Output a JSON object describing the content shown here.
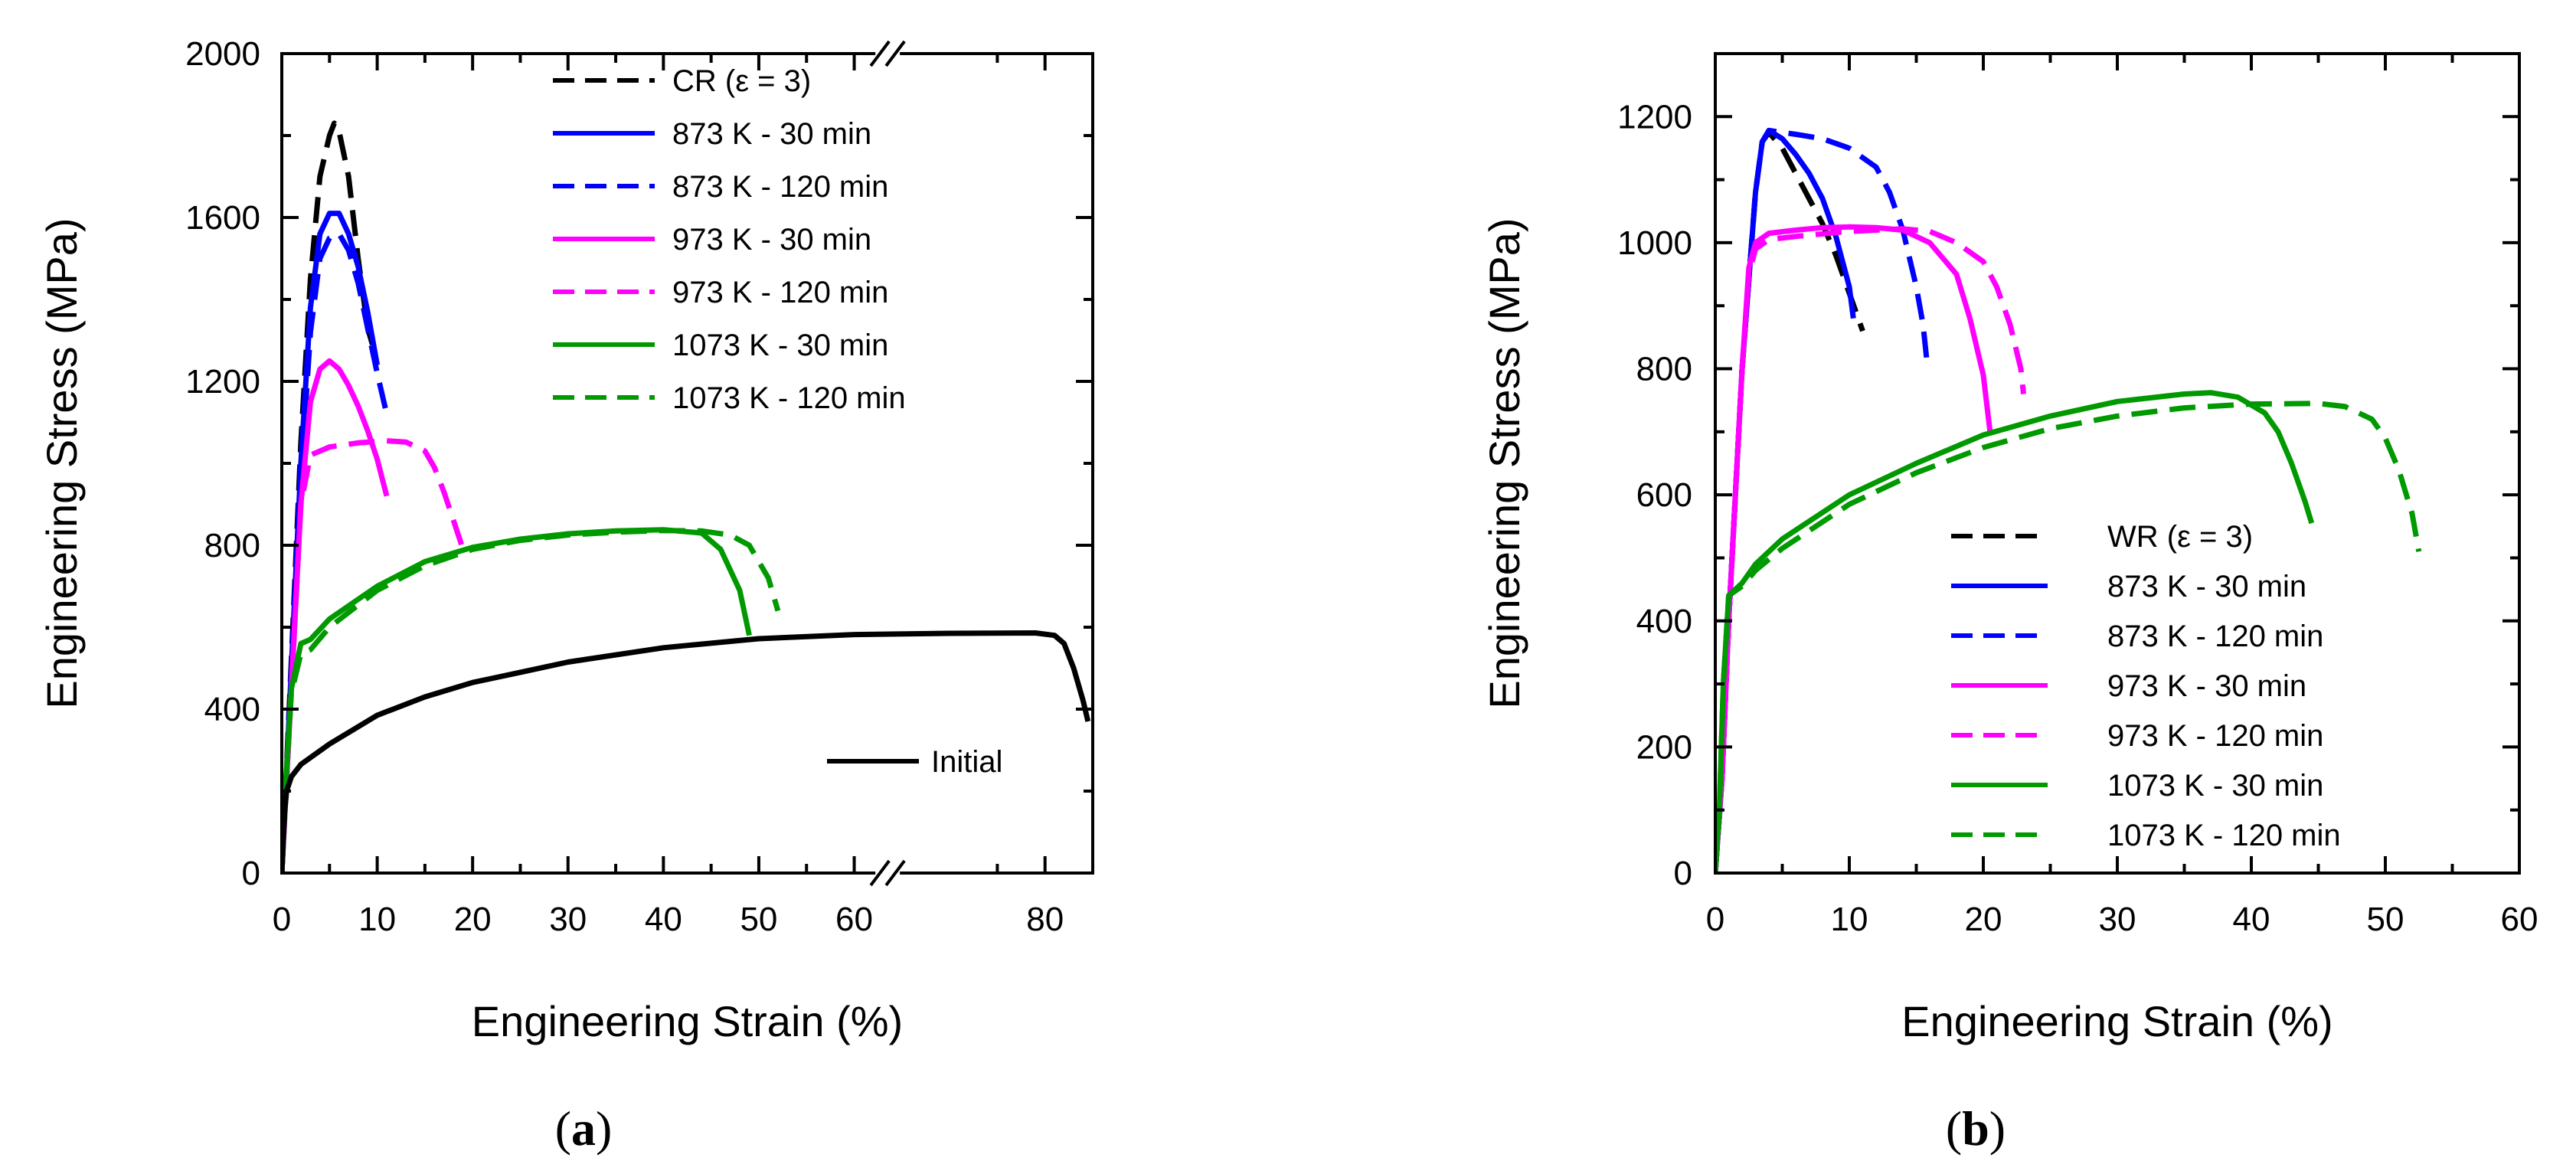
{
  "chart_data": [
    {
      "type": "line",
      "panel": "a",
      "panel_label": "a",
      "title": "",
      "xlabel": "Engineering Strain (%)",
      "ylabel": "Engineering Stress (MPa)",
      "xlim": [
        0,
        85
      ],
      "ylim": [
        0,
        2000
      ],
      "axis_break": [
        62,
        65
      ],
      "xticks": [
        0,
        10,
        20,
        30,
        40,
        50,
        60,
        80
      ],
      "xtick_labels": [
        "0",
        "10",
        "20",
        "30",
        "40",
        "50",
        "60",
        "80"
      ],
      "yticks": [
        0,
        400,
        800,
        1200,
        1600,
        2000
      ],
      "ytick_labels": [
        "0",
        "400",
        "800",
        "1200",
        "1600",
        "2000"
      ],
      "legend_position": "top-right",
      "series": [
        {
          "name": "CR (ε = 3)",
          "color": "#000000",
          "style": "dashed",
          "in_legend": true,
          "points": [
            [
              0,
              0
            ],
            [
              1,
              520
            ],
            [
              2,
              1050
            ],
            [
              3,
              1450
            ],
            [
              4,
              1700
            ],
            [
              5,
              1800
            ],
            [
              5.5,
              1830
            ],
            [
              6,
              1810
            ],
            [
              7,
              1700
            ],
            [
              8,
              1500
            ],
            [
              9,
              1330
            ],
            [
              9.5,
              1290
            ]
          ]
        },
        {
          "name": "873 K - 30 min",
          "color": "#0000ff",
          "style": "solid",
          "in_legend": true,
          "points": [
            [
              0,
              0
            ],
            [
              1,
              500
            ],
            [
              2,
              1000
            ],
            [
              3,
              1380
            ],
            [
              4,
              1560
            ],
            [
              5,
              1610
            ],
            [
              6,
              1610
            ],
            [
              7,
              1560
            ],
            [
              8,
              1480
            ],
            [
              9,
              1370
            ],
            [
              10,
              1240
            ]
          ]
        },
        {
          "name": "873 K - 120 min",
          "color": "#0000ff",
          "style": "dashed",
          "in_legend": true,
          "points": [
            [
              0,
              0
            ],
            [
              1,
              480
            ],
            [
              2,
              960
            ],
            [
              3,
              1320
            ],
            [
              4,
              1500
            ],
            [
              5,
              1550
            ],
            [
              6,
              1560
            ],
            [
              7,
              1520
            ],
            [
              8,
              1440
            ],
            [
              9,
              1330
            ],
            [
              10,
              1220
            ],
            [
              11,
              1120
            ]
          ]
        },
        {
          "name": "973 K - 30 min",
          "color": "#ff00ff",
          "style": "solid",
          "in_legend": true,
          "points": [
            [
              0,
              0
            ],
            [
              1,
              450
            ],
            [
              2,
              900
            ],
            [
              3,
              1150
            ],
            [
              4,
              1230
            ],
            [
              5,
              1250
            ],
            [
              6,
              1230
            ],
            [
              7,
              1190
            ],
            [
              8,
              1140
            ],
            [
              9,
              1080
            ],
            [
              10,
              1010
            ],
            [
              11,
              920
            ]
          ]
        },
        {
          "name": "973 K - 120 min",
          "color": "#ff00ff",
          "style": "dashed",
          "in_legend": true,
          "points": [
            [
              0,
              0
            ],
            [
              1,
              450
            ],
            [
              2,
              900
            ],
            [
              3,
              1020
            ],
            [
              5,
              1040
            ],
            [
              8,
              1050
            ],
            [
              11,
              1055
            ],
            [
              13,
              1052
            ],
            [
              15,
              1030
            ],
            [
              16,
              990
            ],
            [
              17,
              930
            ],
            [
              18,
              860
            ],
            [
              19,
              790
            ]
          ]
        },
        {
          "name": "1073 K - 30 min",
          "color": "#009900",
          "style": "solid",
          "in_legend": true,
          "points": [
            [
              0,
              0
            ],
            [
              0.5,
              250
            ],
            [
              1,
              450
            ],
            [
              2,
              560
            ],
            [
              3,
              570
            ],
            [
              5,
              620
            ],
            [
              10,
              700
            ],
            [
              15,
              760
            ],
            [
              20,
              795
            ],
            [
              25,
              815
            ],
            [
              30,
              828
            ],
            [
              35,
              835
            ],
            [
              40,
              838
            ],
            [
              44,
              830
            ],
            [
              46,
              790
            ],
            [
              48,
              690
            ],
            [
              49,
              580
            ]
          ]
        },
        {
          "name": "1073 K - 120 min",
          "color": "#009900",
          "style": "dashed",
          "in_legend": true,
          "points": [
            [
              0,
              0
            ],
            [
              0.5,
              250
            ],
            [
              1,
              440
            ],
            [
              2,
              535
            ],
            [
              3,
              545
            ],
            [
              5,
              600
            ],
            [
              10,
              690
            ],
            [
              15,
              750
            ],
            [
              20,
              790
            ],
            [
              25,
              812
            ],
            [
              30,
              825
            ],
            [
              35,
              832
            ],
            [
              40,
              836
            ],
            [
              44,
              835
            ],
            [
              47,
              825
            ],
            [
              49,
              800
            ],
            [
              51,
              720
            ],
            [
              52,
              640
            ]
          ]
        },
        {
          "name": "Initial",
          "color": "#000000",
          "style": "solid",
          "in_legend": false,
          "label_text": "Initial",
          "points": [
            [
              0,
              0
            ],
            [
              0.3,
              150
            ],
            [
              0.5,
              200
            ],
            [
              1,
              235
            ],
            [
              2,
              265
            ],
            [
              5,
              315
            ],
            [
              10,
              385
            ],
            [
              15,
              430
            ],
            [
              20,
              465
            ],
            [
              25,
              490
            ],
            [
              30,
              515
            ],
            [
              40,
              550
            ],
            [
              50,
              572
            ],
            [
              60,
              582
            ],
            [
              70,
              585
            ],
            [
              79,
              586
            ],
            [
              81,
              580
            ],
            [
              82,
              560
            ],
            [
              83,
              500
            ],
            [
              84,
              420
            ],
            [
              84.5,
              370
            ]
          ]
        }
      ]
    },
    {
      "type": "line",
      "panel": "b",
      "panel_label": "b",
      "title": "",
      "xlabel": "Engineering Strain (%)",
      "ylabel": "Engineering Stress (MPa)",
      "xlim": [
        0,
        60
      ],
      "ylim": [
        0,
        1300
      ],
      "xticks": [
        0,
        10,
        20,
        30,
        40,
        50,
        60
      ],
      "xtick_labels": [
        "0",
        "10",
        "20",
        "30",
        "40",
        "50",
        "60"
      ],
      "yticks": [
        0,
        200,
        400,
        600,
        800,
        1000,
        1200
      ],
      "ytick_labels": [
        "0",
        "200",
        "400",
        "600",
        "800",
        "1000",
        "1200"
      ],
      "legend_position": "lower-center-right",
      "series": [
        {
          "name": "WR (ε = 3)",
          "color": "#000000",
          "style": "dashed",
          "in_legend": true,
          "points": [
            [
              0,
              0
            ],
            [
              0.5,
              150
            ],
            [
              1,
              400
            ],
            [
              2,
              800
            ],
            [
              3,
              1080
            ],
            [
              3.5,
              1160
            ],
            [
              4,
              1175
            ],
            [
              5,
              1150
            ],
            [
              6,
              1110
            ],
            [
              7,
              1070
            ],
            [
              8,
              1030
            ],
            [
              9,
              980
            ],
            [
              10,
              920
            ],
            [
              11,
              860
            ]
          ]
        },
        {
          "name": "873 K - 30 min",
          "color": "#0000ff",
          "style": "solid",
          "in_legend": true,
          "points": [
            [
              0,
              0
            ],
            [
              0.5,
              150
            ],
            [
              1,
              400
            ],
            [
              2,
              800
            ],
            [
              3,
              1080
            ],
            [
              3.5,
              1160
            ],
            [
              4,
              1178
            ],
            [
              5,
              1165
            ],
            [
              6,
              1140
            ],
            [
              7,
              1110
            ],
            [
              8,
              1070
            ],
            [
              9,
              1010
            ],
            [
              10,
              930
            ],
            [
              10.3,
              880
            ]
          ]
        },
        {
          "name": "873 K - 120 min",
          "color": "#0000ff",
          "style": "dashed",
          "in_legend": true,
          "points": [
            [
              0,
              0
            ],
            [
              0.5,
              150
            ],
            [
              1,
              400
            ],
            [
              2,
              800
            ],
            [
              3,
              1080
            ],
            [
              3.5,
              1160
            ],
            [
              4,
              1178
            ],
            [
              6,
              1172
            ],
            [
              8,
              1165
            ],
            [
              10,
              1150
            ],
            [
              12,
              1120
            ],
            [
              13,
              1080
            ],
            [
              14,
              1020
            ],
            [
              15,
              930
            ],
            [
              15.5,
              870
            ],
            [
              15.8,
              810
            ]
          ]
        },
        {
          "name": "973 K - 30 min",
          "color": "#ff00ff",
          "style": "solid",
          "in_legend": true,
          "points": [
            [
              0,
              0
            ],
            [
              0.5,
              150
            ],
            [
              1,
              400
            ],
            [
              2,
              800
            ],
            [
              2.5,
              960
            ],
            [
              3,
              1000
            ],
            [
              4,
              1015
            ],
            [
              6,
              1020
            ],
            [
              8,
              1024
            ],
            [
              10,
              1025
            ],
            [
              12,
              1024
            ],
            [
              14,
              1020
            ],
            [
              16,
              1000
            ],
            [
              18,
              950
            ],
            [
              19,
              880
            ],
            [
              20,
              790
            ],
            [
              20.5,
              700
            ]
          ]
        },
        {
          "name": "973 K - 120 min",
          "color": "#ff00ff",
          "style": "dashed",
          "in_legend": true,
          "points": [
            [
              0,
              0
            ],
            [
              0.5,
              150
            ],
            [
              1,
              400
            ],
            [
              2,
              800
            ],
            [
              2.5,
              950
            ],
            [
              3,
              990
            ],
            [
              4,
              1005
            ],
            [
              6,
              1010
            ],
            [
              10,
              1018
            ],
            [
              14,
              1022
            ],
            [
              16,
              1018
            ],
            [
              18,
              1000
            ],
            [
              20,
              970
            ],
            [
              21,
              930
            ],
            [
              22,
              870
            ],
            [
              22.8,
              800
            ],
            [
              23,
              760
            ]
          ]
        },
        {
          "name": "1073 K - 30 min",
          "color": "#009900",
          "style": "solid",
          "in_legend": true,
          "points": [
            [
              0,
              0
            ],
            [
              0.3,
              100
            ],
            [
              0.6,
              300
            ],
            [
              1,
              440
            ],
            [
              2,
              460
            ],
            [
              3,
              490
            ],
            [
              5,
              530
            ],
            [
              10,
              600
            ],
            [
              15,
              650
            ],
            [
              20,
              695
            ],
            [
              25,
              725
            ],
            [
              30,
              748
            ],
            [
              35,
              760
            ],
            [
              37,
              762
            ],
            [
              39,
              755
            ],
            [
              41,
              730
            ],
            [
              42,
              700
            ],
            [
              43,
              650
            ],
            [
              44,
              590
            ],
            [
              44.5,
              555
            ]
          ]
        },
        {
          "name": "1073 K - 120 min",
          "color": "#009900",
          "style": "dashed",
          "in_legend": true,
          "points": [
            [
              0,
              0
            ],
            [
              0.3,
              100
            ],
            [
              0.6,
              300
            ],
            [
              1,
              440
            ],
            [
              2,
              455
            ],
            [
              3,
              480
            ],
            [
              5,
              515
            ],
            [
              10,
              585
            ],
            [
              15,
              635
            ],
            [
              20,
              675
            ],
            [
              25,
              705
            ],
            [
              30,
              725
            ],
            [
              35,
              738
            ],
            [
              40,
              744
            ],
            [
              45,
              745
            ],
            [
              47,
              740
            ],
            [
              49,
              720
            ],
            [
              50,
              690
            ],
            [
              51,
              640
            ],
            [
              52,
              570
            ],
            [
              52.5,
              510
            ]
          ]
        }
      ]
    }
  ]
}
